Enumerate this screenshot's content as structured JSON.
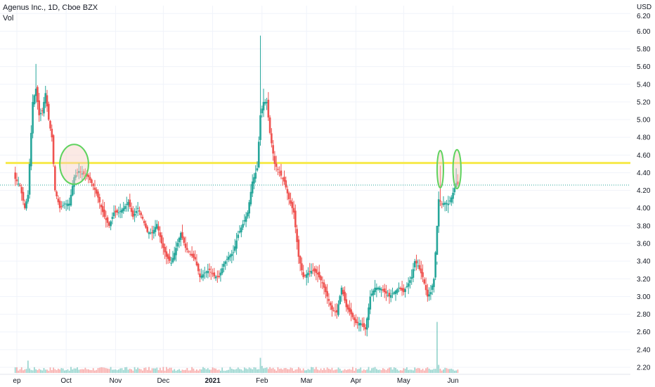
{
  "header": {
    "title": "Agenus Inc., 1D, Cboe BZX",
    "volume_label": "Vol"
  },
  "chart_data": {
    "type": "candlestick",
    "currency": "USD",
    "y_ticks": [
      "6.20",
      "6.00",
      "5.80",
      "5.60",
      "5.40",
      "5.20",
      "5.00",
      "4.80",
      "4.60",
      "4.40",
      "4.20",
      "4.00",
      "3.80",
      "3.60",
      "3.40",
      "3.20",
      "3.00",
      "2.80",
      "2.60",
      "2.40",
      "2.20"
    ],
    "ylim": [
      2.2,
      6.2
    ],
    "x_ticks": [
      {
        "label": "ep",
        "day": -2
      },
      {
        "label": "Oct",
        "day": 29
      },
      {
        "label": "Nov",
        "day": 60
      },
      {
        "label": "Dec",
        "day": 90
      },
      {
        "label": "2021",
        "day": 121,
        "bold": true
      },
      {
        "label": "Feb",
        "day": 152
      },
      {
        "label": "Mar",
        "day": 180
      },
      {
        "label": "Apr",
        "day": 211
      },
      {
        "label": "May",
        "day": 241
      },
      {
        "label": "Jun",
        "day": 272
      }
    ],
    "resistance_level": 4.51,
    "last_price_level": 4.26,
    "highlight_areas": [
      {
        "day_start": 25,
        "day_end": 43,
        "price_low": 4.27,
        "price_high": 4.72
      },
      {
        "day_start": 262,
        "day_end": 266,
        "price_low": 4.23,
        "price_high": 4.65
      },
      {
        "day_start": 272,
        "day_end": 277,
        "price_low": 4.22,
        "price_high": 4.66
      }
    ],
    "colors": {
      "up": "#26a69a",
      "down": "#ef5350",
      "resistance": "#f7ea4a",
      "highlight_edge": "#5fd35f",
      "highlight_fill": "#f7cfc4",
      "grid": "#f0f3fa",
      "last_price": "#26a69a"
    },
    "keypoints": [
      [
        -3,
        4.33
      ],
      [
        0,
        4.25
      ],
      [
        3,
        4.0
      ],
      [
        5,
        4.15
      ],
      [
        8,
        5.2
      ],
      [
        10,
        5.35
      ],
      [
        12,
        5.05
      ],
      [
        14,
        5.1
      ],
      [
        16,
        5.3
      ],
      [
        18,
        5.0
      ],
      [
        20,
        4.8
      ],
      [
        22,
        4.2
      ],
      [
        25,
        4.0
      ],
      [
        28,
        4.05
      ],
      [
        31,
        4.05
      ],
      [
        34,
        4.35
      ],
      [
        37,
        4.42
      ],
      [
        40,
        4.38
      ],
      [
        43,
        4.35
      ],
      [
        46,
        4.25
      ],
      [
        49,
        4.12
      ],
      [
        53,
        3.9
      ],
      [
        56,
        3.8
      ],
      [
        59,
        3.95
      ],
      [
        62,
        3.95
      ],
      [
        65,
        4.0
      ],
      [
        68,
        4.07
      ],
      [
        71,
        3.9
      ],
      [
        74,
        4.0
      ],
      [
        77,
        3.88
      ],
      [
        80,
        3.73
      ],
      [
        83,
        3.72
      ],
      [
        86,
        3.82
      ],
      [
        89,
        3.6
      ],
      [
        92,
        3.45
      ],
      [
        95,
        3.38
      ],
      [
        98,
        3.55
      ],
      [
        101,
        3.72
      ],
      [
        104,
        3.55
      ],
      [
        107,
        3.48
      ],
      [
        110,
        3.42
      ],
      [
        113,
        3.22
      ],
      [
        116,
        3.27
      ],
      [
        119,
        3.3
      ],
      [
        122,
        3.23
      ],
      [
        125,
        3.22
      ],
      [
        128,
        3.37
      ],
      [
        131,
        3.45
      ],
      [
        134,
        3.5
      ],
      [
        137,
        3.7
      ],
      [
        140,
        3.82
      ],
      [
        143,
        3.95
      ],
      [
        146,
        4.3
      ],
      [
        149,
        4.45
      ],
      [
        151,
        5.05
      ],
      [
        153,
        5.2
      ],
      [
        155,
        5.2
      ],
      [
        157,
        4.85
      ],
      [
        160,
        4.5
      ],
      [
        163,
        4.4
      ],
      [
        166,
        4.3
      ],
      [
        169,
        4.1
      ],
      [
        172,
        3.95
      ],
      [
        175,
        3.45
      ],
      [
        178,
        3.22
      ],
      [
        181,
        3.27
      ],
      [
        184,
        3.3
      ],
      [
        187,
        3.25
      ],
      [
        190,
        3.15
      ],
      [
        193,
        3.0
      ],
      [
        196,
        2.85
      ],
      [
        199,
        2.82
      ],
      [
        202,
        3.1
      ],
      [
        205,
        2.88
      ],
      [
        208,
        2.8
      ],
      [
        211,
        2.7
      ],
      [
        214,
        2.7
      ],
      [
        217,
        2.63
      ],
      [
        220,
        3.0
      ],
      [
        223,
        3.1
      ],
      [
        226,
        3.1
      ],
      [
        229,
        3.05
      ],
      [
        232,
        3.0
      ],
      [
        235,
        3.05
      ],
      [
        238,
        3.1
      ],
      [
        241,
        3.05
      ],
      [
        244,
        3.15
      ],
      [
        246,
        3.22
      ],
      [
        248,
        3.4
      ],
      [
        250,
        3.35
      ],
      [
        253,
        3.22
      ],
      [
        256,
        3.0
      ],
      [
        258,
        3.05
      ],
      [
        260,
        3.2
      ],
      [
        263,
        4.1
      ],
      [
        265,
        4.05
      ],
      [
        267,
        4.06
      ],
      [
        269,
        4.05
      ],
      [
        271,
        4.12
      ],
      [
        274,
        4.28
      ],
      [
        275,
        4.27
      ]
    ],
    "special_highs": [
      {
        "day": 151,
        "high": 5.95
      },
      {
        "day": 10,
        "high": 5.63
      },
      {
        "day": 153,
        "high": 5.35
      },
      {
        "day": 262,
        "high": 3.36
      },
      {
        "day": 274,
        "high": 4.45
      },
      {
        "day": 264,
        "high": 4.48
      }
    ],
    "volume_spikes": [
      {
        "day": 5,
        "volume": 3.5
      },
      {
        "day": 151,
        "volume": 4.3
      },
      {
        "day": 152,
        "volume": 2.0
      },
      {
        "day": 262,
        "volume": 14.5
      },
      {
        "day": 263,
        "volume": 2.3
      },
      {
        "day": 264,
        "volume": 1.2
      },
      {
        "day": 60,
        "volume": 1.0
      },
      {
        "day": 120,
        "volume": 0.9
      }
    ]
  }
}
